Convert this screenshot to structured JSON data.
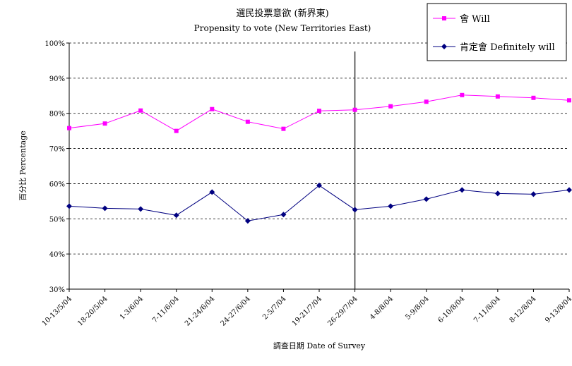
{
  "chart_data": {
    "type": "line",
    "title": "選民投票意欲 (新界東)",
    "subtitle": "Propensity to vote (New Territories East)",
    "xlabel": "調查日期 Date of Survey",
    "ylabel": "百分比 Percentage",
    "ylim": [
      30,
      100
    ],
    "yticks": [
      "30%",
      "40%",
      "50%",
      "60%",
      "70%",
      "80%",
      "90%",
      "100%"
    ],
    "grid": "horizontal-dashed",
    "legend_position": "top-right",
    "categories": [
      "10-13/5/04",
      "18-20/5/04",
      "1-3/6/04",
      "7-11/6/04",
      "21-24/6/04",
      "24-27/6/04",
      "2-5/7/04",
      "19-21/7/04",
      "26-29/7/04",
      "4-8/8/04",
      "5-9/8/04",
      "6-10/8/04",
      "7-11/8/04",
      "8-12/8/04",
      "9-13/8/04"
    ],
    "series": [
      {
        "name": "會 Will",
        "color": "#ff00ff",
        "marker": "square",
        "values": [
          75.8,
          77.1,
          80.8,
          75.0,
          81.2,
          77.6,
          75.6,
          80.7,
          81.0,
          82.0,
          83.3,
          85.2,
          84.8,
          84.4,
          83.7
        ]
      },
      {
        "name": "肯定會 Definitely will",
        "color": "#000080",
        "marker": "diamond",
        "values": [
          53.6,
          53.0,
          52.8,
          51.0,
          57.6,
          49.4,
          51.2,
          59.5,
          52.6,
          53.6,
          55.6,
          58.2,
          57.2,
          57.0,
          58.2
        ]
      }
    ],
    "vertical_marker_index": 8
  }
}
